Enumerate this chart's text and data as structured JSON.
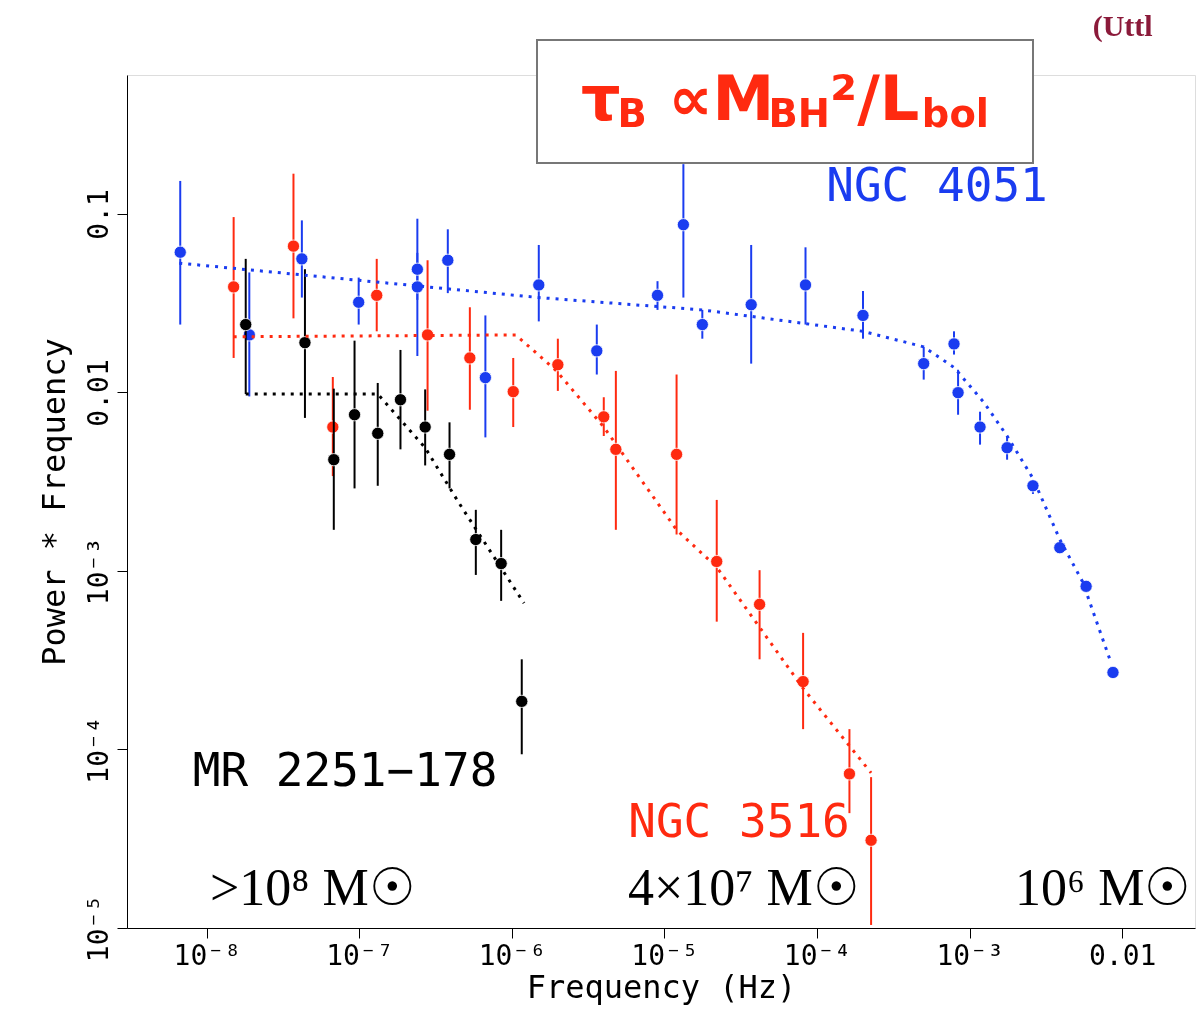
{
  "chart_data": {
    "type": "scatter",
    "xlabel": "Frequency (Hz)",
    "ylabel": "Power * Frequency",
    "log": "xy",
    "grid": false,
    "marker": "circle",
    "xlim": [
      3e-09,
      0.03
    ],
    "ylim": [
      1e-05,
      0.6
    ],
    "xticks": [
      {
        "value": 1e-08,
        "label": "10⁻⁸"
      },
      {
        "value": 1e-07,
        "label": "10⁻⁷"
      },
      {
        "value": 1e-06,
        "label": "10⁻⁶"
      },
      {
        "value": 1e-05,
        "label": "10⁻⁵"
      },
      {
        "value": 0.0001,
        "label": "10⁻⁴"
      },
      {
        "value": 0.001,
        "label": "10⁻³"
      },
      0.01
    ],
    "yticks": [
      {
        "value": 1e-05,
        "label": "10⁻⁵"
      },
      {
        "value": 0.0001,
        "label": "10⁻⁴"
      },
      {
        "value": 0.001,
        "label": "10⁻³"
      },
      0.01,
      0.1
    ],
    "annotations": [
      "τ$_{B}$ ∝M$_{BH}$²/L$_{bol}$",
      "(Uttl",
      ">10⁸ M☉",
      "4×10⁷ M☉",
      "10⁶ M☉"
    ],
    "series": [
      {
        "name": "NGC 4051",
        "type": "scatter",
        "color": "#1a3cf0",
        "x": [
          6.7e-09,
          1.9e-08,
          4.2e-08,
          9.9e-08,
          2.4e-07,
          2.4e-07,
          3.8e-07,
          6.7e-07,
          1.5e-06,
          3.6e-06,
          9e-06,
          1.33e-05,
          1.77e-05,
          3.7e-05,
          8.4e-05,
          0.0002,
          0.0005,
          0.00079,
          0.00084,
          0.00117,
          0.00176,
          0.0026,
          0.0039,
          0.0058,
          0.0087
        ],
        "values": [
          0.061,
          0.021,
          0.056,
          0.032,
          0.049,
          0.039,
          0.055,
          0.0121,
          0.04,
          0.0171,
          0.035,
          0.087,
          0.024,
          0.031,
          0.04,
          0.027,
          0.0145,
          0.0187,
          0.00997,
          0.0064,
          0.0049,
          0.003,
          0.00135,
          0.00082,
          0.00027
        ],
        "errors": [
          [
            0.024,
            0.153
          ],
          [
            0.0095,
            0.047
          ],
          [
            0.034,
            0.092
          ],
          [
            0.024,
            0.044
          ],
          [
            0.033,
            0.094
          ],
          [
            0.016,
            0.0605
          ],
          [
            0.036,
            0.082
          ],
          [
            0.0056,
            0.027
          ],
          [
            0.025,
            0.067
          ],
          [
            0.0126,
            0.024
          ],
          [
            0.029,
            0.042
          ],
          [
            0.034,
            0.19
          ],
          [
            0.02,
            0.029
          ],
          [
            0.0145,
            0.067
          ],
          [
            0.024,
            0.065
          ],
          [
            0.02,
            0.037
          ],
          [
            0.0118,
            0.018
          ],
          [
            0.0163,
            0.022
          ],
          [
            0.0075,
            0.0134
          ],
          [
            0.0051,
            0.0078
          ],
          [
            0.0042,
            0.0057
          ],
          [
            0.0027,
            0.0032
          ],
          null,
          null,
          null
        ]
      },
      {
        "name": "NGC 3516",
        "type": "scatter",
        "color": "#ff2a10",
        "x": [
          1.5e-08,
          3.7e-08,
          6.7e-08,
          1.3e-07,
          2.8e-07,
          5.3e-07,
          1.02e-06,
          2e-06,
          4e-06,
          4.8e-06,
          1.2e-05,
          2.2e-05,
          4.2e-05,
          8.1e-05,
          0.000163,
          0.000226
        ],
        "values": [
          0.039,
          0.066,
          0.0064,
          0.035,
          0.021,
          0.0156,
          0.0101,
          0.0143,
          0.0073,
          0.0048,
          0.0045,
          0.00113,
          0.00065,
          0.00024,
          7.3e-05,
          3.1e-05
        ],
        "errors": [
          [
            0.0156,
            0.096
          ],
          [
            0.026,
            0.168
          ],
          [
            0.0034,
            0.0122
          ],
          [
            0.022,
            0.056
          ],
          [
            0.0079,
            0.055
          ],
          [
            0.008,
            0.03
          ],
          [
            0.0064,
            0.0156
          ],
          [
            0.0102,
            0.02
          ],
          [
            0.0057,
            0.0094
          ],
          [
            0.0017,
            0.0132
          ],
          [
            0.0016,
            0.0126
          ],
          [
            0.00052,
            0.0025
          ],
          [
            0.00032,
            0.00101
          ],
          [
            0.00013,
            0.00045
          ],
          [
            4.4e-05,
            0.00013
          ],
          [
            1.04e-05,
            7e-05
          ]
        ]
      },
      {
        "name": "MR 2251−178",
        "type": "scatter",
        "color": "#000000",
        "x": [
          1.8e-08,
          4.4e-08,
          6.8e-08,
          9.3e-08,
          1.32e-07,
          1.86e-07,
          2.7e-07,
          3.9e-07,
          5.8e-07,
          8.5e-07,
          1.16e-06
        ],
        "values": [
          0.024,
          0.019,
          0.0042,
          0.0075,
          0.0059,
          0.0091,
          0.0064,
          0.0045,
          0.0015,
          0.0011,
          0.000186
        ],
        "errors": [
          [
            0.0098,
            0.056
          ],
          [
            0.0072,
            0.049
          ],
          [
            0.0017,
            0.0105
          ],
          [
            0.0029,
            0.0195
          ],
          [
            0.003,
            0.0113
          ],
          [
            0.0048,
            0.0173
          ],
          [
            0.0039,
            0.0104
          ],
          [
            0.0029,
            0.0068
          ],
          [
            0.00095,
            0.0022
          ],
          [
            0.00068,
            0.0017
          ],
          [
            9.4e-05,
            0.00032
          ]
        ]
      },
      {
        "type": "line",
        "color": "#1a3cf0",
        "line_style": "dotted",
        "marker": "none",
        "x": [
          6.6e-09,
          1.5e-06,
          1.77e-05,
          0.0002,
          0.0005,
          0.00079,
          0.00124,
          0.00176,
          0.0026,
          0.0039,
          0.0055,
          0.0084
        ],
        "values": [
          0.053,
          0.034,
          0.029,
          0.022,
          0.018,
          0.0138,
          0.0088,
          0.0057,
          0.0033,
          0.0015,
          0.00087,
          0.00031
        ]
      },
      {
        "type": "line",
        "color": "#ff2a10",
        "line_style": "dotted",
        "marker": "none",
        "x": [
          1.5e-08,
          1.06e-06,
          1.96e-06,
          4e-06,
          1.2e-05,
          2.2e-05,
          8.1e-05,
          0.000226
        ],
        "values": [
          0.0205,
          0.021,
          0.0132,
          0.0064,
          0.0017,
          0.00105,
          0.00022,
          7.4e-05
        ]
      },
      {
        "type": "line",
        "color": "#000000",
        "line_style": "dotted",
        "marker": "none",
        "x": [
          1.8e-08,
          1.32e-07,
          2.7e-07,
          4.5e-07,
          1.2e-06
        ],
        "values": [
          0.0098,
          0.0098,
          0.0049,
          0.0024,
          0.00066
        ]
      }
    ]
  }
}
